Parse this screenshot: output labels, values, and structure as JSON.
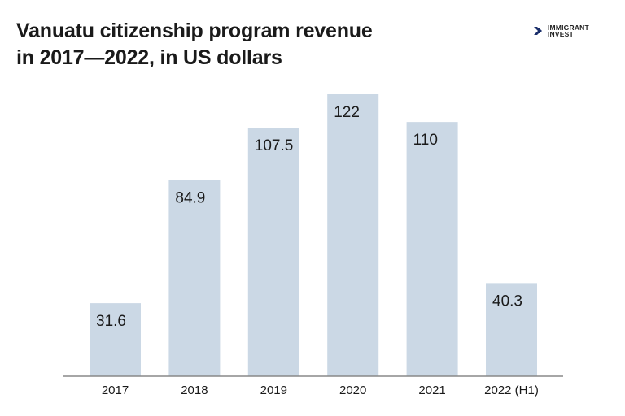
{
  "logo": {
    "line1": "IMMIGRANT",
    "line2": "INVEST",
    "icon": "double-chevron-right-icon",
    "color": "#1b2f6b"
  },
  "chart_data": {
    "type": "bar",
    "title_line1": "Vanuatu citizenship program revenue",
    "title_line2": "in 2017—2022, in US dollars",
    "categories": [
      "2017",
      "2018",
      "2019",
      "2020",
      "2021",
      "2022 (H1)"
    ],
    "values": [
      31.6,
      84.9,
      107.5,
      122,
      110,
      40.3
    ],
    "value_labels": [
      "31.6",
      "84.9",
      "107.5",
      "122",
      "110",
      "40.3"
    ],
    "xlabel": "",
    "ylabel": "",
    "ylim": [
      0,
      122
    ],
    "grid": false,
    "bar_color": "#cbd8e5",
    "axis_color": "#888888"
  }
}
